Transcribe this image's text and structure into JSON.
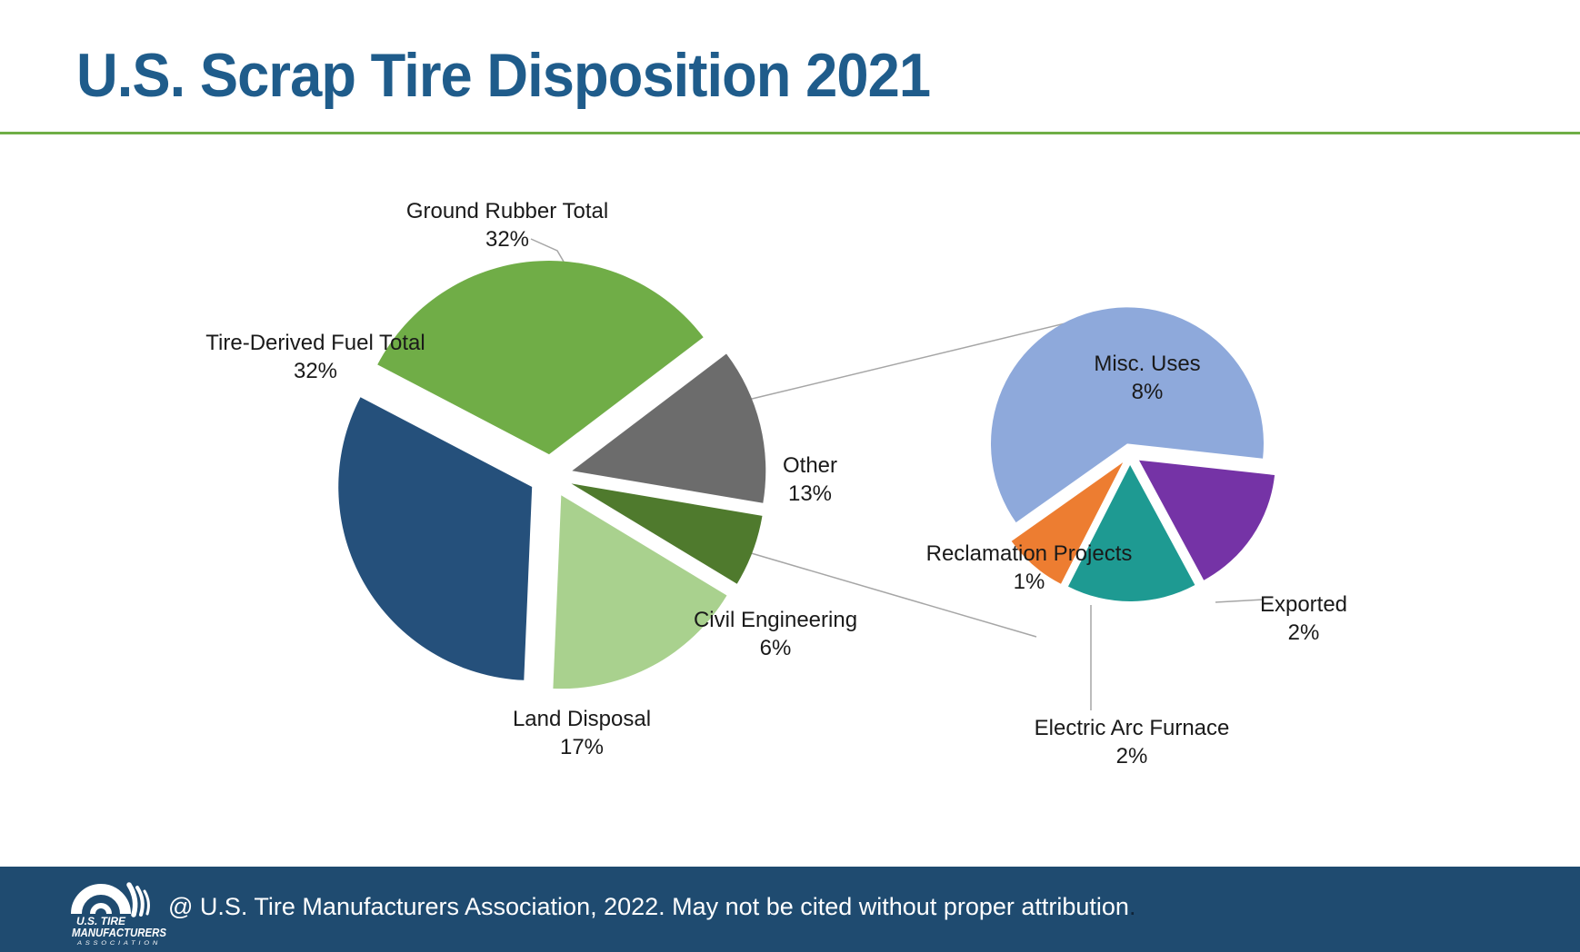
{
  "title": "U.S. Scrap Tire Disposition 2021",
  "colors": {
    "title_text": "#1F5C8B",
    "title_rule": "#6FAE46",
    "footer_bar": "#1F4B70",
    "connector_line": "#A6A6A6",
    "label_text": "#1A1A1A"
  },
  "chart_data": {
    "type": "pie",
    "subtype": "pie-of-pie",
    "title": "U.S. Scrap Tire Disposition 2021",
    "legend": "none",
    "main_pie": {
      "start_angle_deg": -62.4,
      "total": 100,
      "slices": [
        {
          "label": "Ground Rubber Total",
          "value": 32,
          "pct_text": "32%",
          "color": "#70AD47"
        },
        {
          "label": "Other",
          "value": 13,
          "pct_text": "13%",
          "color": "#6C6C6C"
        },
        {
          "label": "Civil Engineering",
          "value": 6,
          "pct_text": "6%",
          "color": "#4F7A2D"
        },
        {
          "label": "Land Disposal",
          "value": 17,
          "pct_text": "17%",
          "color": "#A9D18E"
        },
        {
          "label": "Tire-Derived Fuel Total",
          "value": 32,
          "pct_text": "32%",
          "color": "#25507B"
        }
      ]
    },
    "secondary_pie": {
      "represents": "Other",
      "start_angle_deg": -125.3,
      "total": 13,
      "slices": [
        {
          "label": "Misc. Uses",
          "value": 8,
          "pct_text": "8%",
          "color": "#8EA9DB"
        },
        {
          "label": "Exported",
          "value": 2,
          "pct_text": "2%",
          "color": "#7533A6"
        },
        {
          "label": "Electric Arc Furnace",
          "value": 2,
          "pct_text": "2%",
          "color": "#1E9A92"
        },
        {
          "label": "Reclamation Projects",
          "value": 1,
          "pct_text": "1%",
          "color": "#ED7D31"
        }
      ]
    }
  },
  "footer": {
    "attribution": "@ U.S. Tire Manufacturers Association, 2022. May not be cited without proper attribution",
    "attribution_period": ".",
    "logo": {
      "line1": "U.S. TIRE",
      "line2": "MANUFACTURERS",
      "line3": "ASSOCIATION"
    }
  }
}
